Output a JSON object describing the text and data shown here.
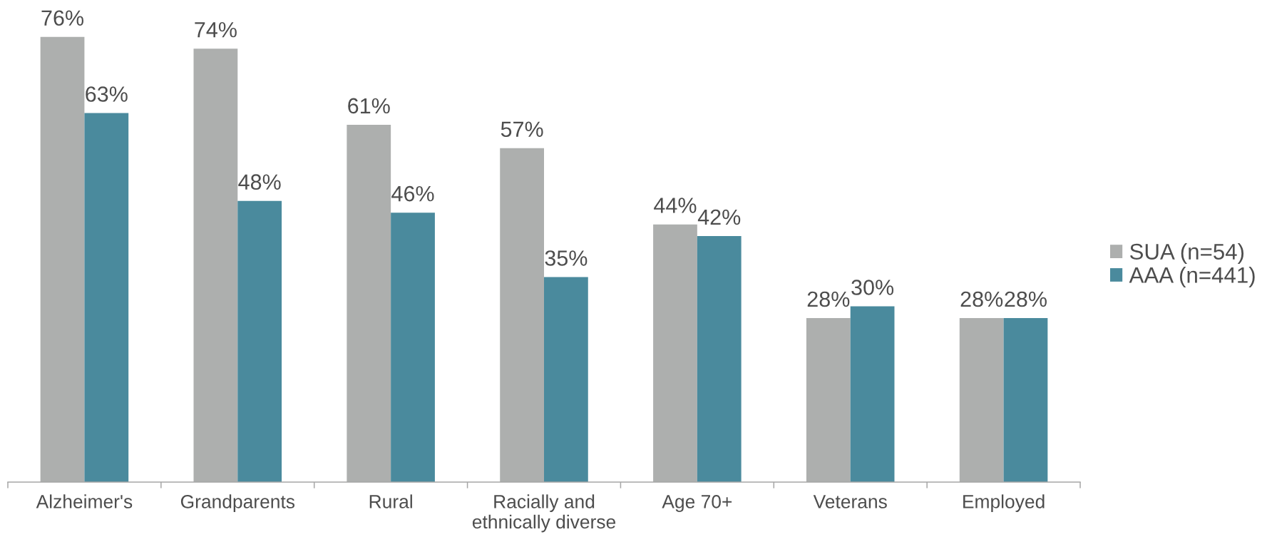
{
  "chart_data": {
    "type": "bar",
    "categories": [
      "Alzheimer's",
      "Grandparents",
      "Rural",
      "Racially and\nethnically diverse",
      "Age 70+",
      "Veterans",
      "Employed"
    ],
    "series": [
      {
        "name": "SUA (n=54)",
        "color": "#adafae",
        "values": [
          76,
          74,
          61,
          57,
          44,
          28,
          28
        ],
        "value_labels": [
          "76%",
          "74%",
          "61%",
          "57%",
          "44%",
          "28%",
          "28%"
        ]
      },
      {
        "name": "AAA (n=441)",
        "color": "#4a8a9d",
        "values": [
          63,
          48,
          46,
          35,
          42,
          30,
          28
        ],
        "value_labels": [
          "63%",
          "48%",
          "46%",
          "35%",
          "42%",
          "30%",
          "28%"
        ]
      }
    ],
    "legend": "right"
  }
}
